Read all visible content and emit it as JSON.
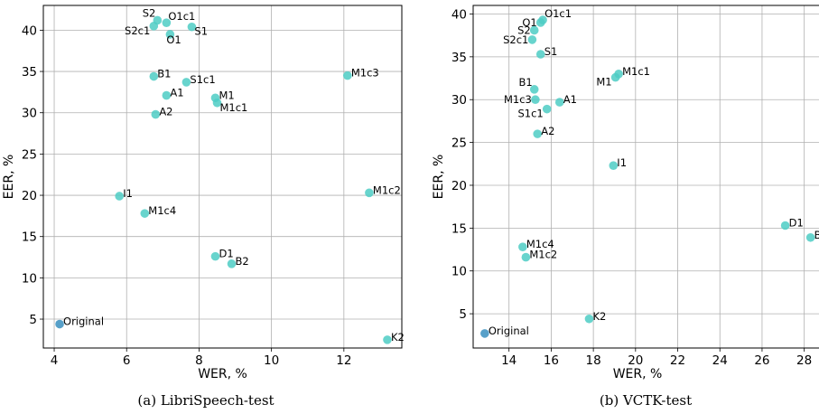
{
  "colors": {
    "point": "#4ecdc4",
    "original_point": "#3a8fc0",
    "grid": "#b0b0b0"
  },
  "chart_data": [
    {
      "type": "scatter",
      "caption": "(a) LibriSpeech-test",
      "xlabel": "WER, %",
      "ylabel": "EER, %",
      "xlim": [
        3.7,
        13.6
      ],
      "ylim": [
        1.5,
        43.0
      ],
      "xticks": [
        4,
        6,
        8,
        10,
        12
      ],
      "yticks": [
        5,
        10,
        15,
        20,
        25,
        30,
        35,
        40
      ],
      "grid": true,
      "points": [
        {
          "label": "S2",
          "x": 6.85,
          "y": 41.2,
          "lpos": "tl"
        },
        {
          "label": "O1c1",
          "x": 7.1,
          "y": 40.9,
          "lpos": "tr"
        },
        {
          "label": "S2c1",
          "x": 6.75,
          "y": 40.5,
          "lpos": "bl"
        },
        {
          "label": "S1",
          "x": 7.8,
          "y": 40.4,
          "lpos": "br"
        },
        {
          "label": "O1",
          "x": 7.2,
          "y": 39.5,
          "lpos": "b"
        },
        {
          "label": "B1",
          "x": 6.75,
          "y": 34.4,
          "lpos": "r"
        },
        {
          "label": "S1c1",
          "x": 7.65,
          "y": 33.7,
          "lpos": "r"
        },
        {
          "label": "M1c3",
          "x": 12.1,
          "y": 34.5,
          "lpos": "r"
        },
        {
          "label": "A1",
          "x": 7.1,
          "y": 32.1,
          "lpos": "r"
        },
        {
          "label": "M1",
          "x": 8.45,
          "y": 31.8,
          "lpos": "r"
        },
        {
          "label": "M1c1",
          "x": 8.5,
          "y": 31.2,
          "lpos": "br"
        },
        {
          "label": "A2",
          "x": 6.8,
          "y": 29.8,
          "lpos": "r"
        },
        {
          "label": "I1",
          "x": 5.8,
          "y": 19.9,
          "lpos": "r"
        },
        {
          "label": "M1c2",
          "x": 12.7,
          "y": 20.3,
          "lpos": "r"
        },
        {
          "label": "M1c4",
          "x": 6.5,
          "y": 17.8,
          "lpos": "r"
        },
        {
          "label": "D1",
          "x": 8.45,
          "y": 12.6,
          "lpos": "r"
        },
        {
          "label": "B2",
          "x": 8.9,
          "y": 11.7,
          "lpos": "r"
        },
        {
          "label": "Original",
          "x": 4.15,
          "y": 4.4,
          "lpos": "r",
          "original": true
        },
        {
          "label": "K2",
          "x": 13.2,
          "y": 2.5,
          "lpos": "r"
        }
      ]
    },
    {
      "type": "scatter",
      "caption": "(b) VCTK-test",
      "xlabel": "WER, %",
      "ylabel": "EER, %",
      "xlim": [
        12.3,
        28.7
      ],
      "ylim": [
        1.0,
        41.0
      ],
      "xticks": [
        14,
        16,
        18,
        20,
        22,
        24,
        26,
        28
      ],
      "yticks": [
        5,
        10,
        15,
        20,
        25,
        30,
        35,
        40
      ],
      "grid": true,
      "points": [
        {
          "label": "O1c1",
          "x": 15.6,
          "y": 39.3,
          "lpos": "tr"
        },
        {
          "label": "O1",
          "x": 15.5,
          "y": 39.0,
          "lpos": "l"
        },
        {
          "label": "S2",
          "x": 15.2,
          "y": 38.1,
          "lpos": "l"
        },
        {
          "label": "S2c1",
          "x": 15.1,
          "y": 37.0,
          "lpos": "l"
        },
        {
          "label": "S1",
          "x": 15.5,
          "y": 35.3,
          "lpos": "r"
        },
        {
          "label": "M1c1",
          "x": 19.2,
          "y": 33.0,
          "lpos": "r"
        },
        {
          "label": "M1",
          "x": 19.05,
          "y": 32.6,
          "lpos": "bl"
        },
        {
          "label": "B1",
          "x": 15.2,
          "y": 31.2,
          "lpos": "tl"
        },
        {
          "label": "M1c3",
          "x": 15.25,
          "y": 30.0,
          "lpos": "l"
        },
        {
          "label": "A1",
          "x": 16.4,
          "y": 29.7,
          "lpos": "r"
        },
        {
          "label": "S1c1",
          "x": 15.8,
          "y": 28.9,
          "lpos": "bl"
        },
        {
          "label": "A2",
          "x": 15.35,
          "y": 26.0,
          "lpos": "r"
        },
        {
          "label": "I1",
          "x": 18.95,
          "y": 22.3,
          "lpos": "r"
        },
        {
          "label": "D1",
          "x": 27.1,
          "y": 15.3,
          "lpos": "r"
        },
        {
          "label": "B",
          "x": 28.3,
          "y": 13.9,
          "lpos": "r"
        },
        {
          "label": "M1c4",
          "x": 14.65,
          "y": 12.8,
          "lpos": "r"
        },
        {
          "label": "M1c2",
          "x": 14.8,
          "y": 11.6,
          "lpos": "r"
        },
        {
          "label": "K2",
          "x": 17.8,
          "y": 4.4,
          "lpos": "r"
        },
        {
          "label": "Original",
          "x": 12.85,
          "y": 2.7,
          "lpos": "r",
          "original": true
        }
      ]
    }
  ]
}
